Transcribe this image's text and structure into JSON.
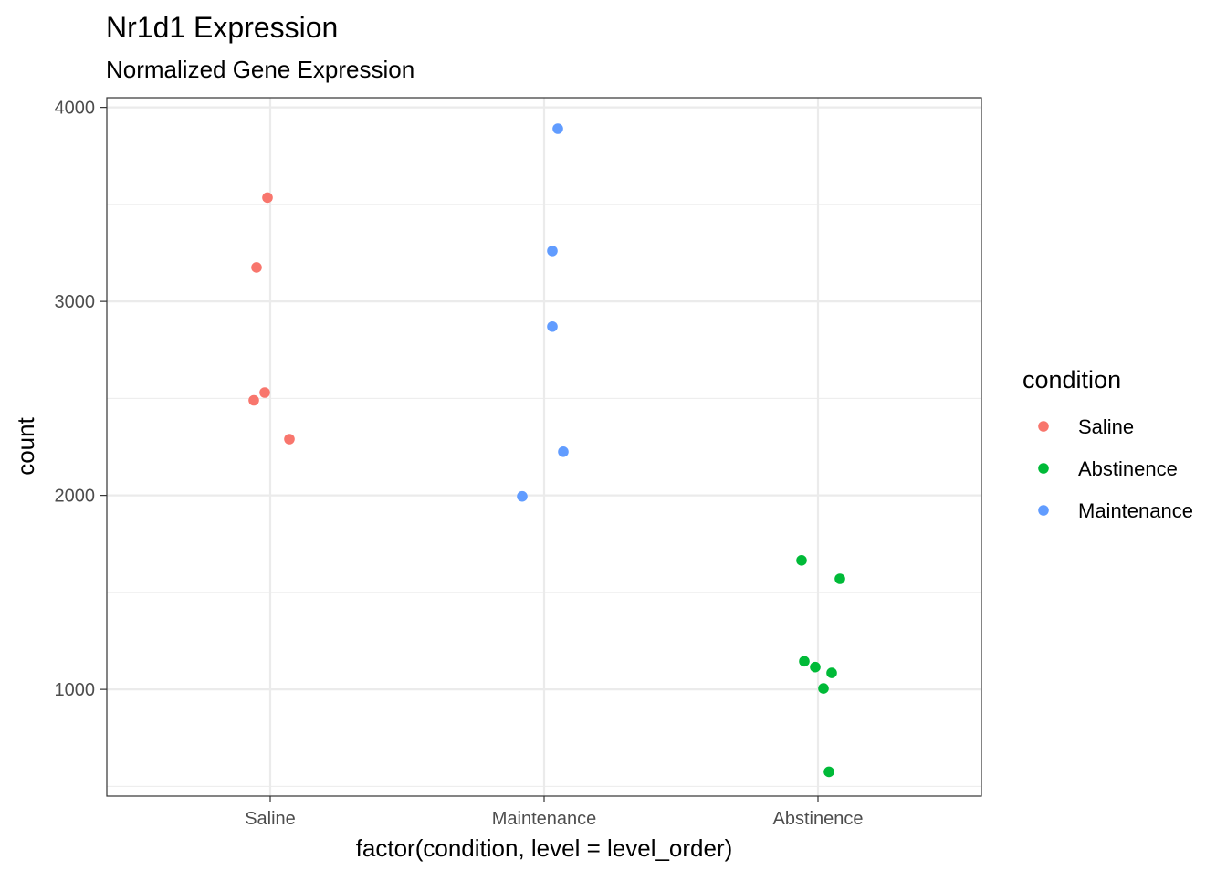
{
  "chart_data": {
    "type": "scatter",
    "title": "Nr1d1 Expression",
    "subtitle": "Normalized Gene Expression",
    "xlabel": "factor(condition, level = level_order)",
    "ylabel": "count",
    "categories": [
      "Saline",
      "Maintenance",
      "Abstinence"
    ],
    "y_ticks": [
      1000,
      2000,
      3000,
      4000
    ],
    "ylim": [
      450,
      4050
    ],
    "grid": true,
    "legend": {
      "title": "condition",
      "position": "right",
      "entries": [
        {
          "label": "Saline",
          "color": "#F8766D"
        },
        {
          "label": "Abstinence",
          "color": "#00BA38"
        },
        {
          "label": "Maintenance",
          "color": "#619CFF"
        }
      ]
    },
    "series": [
      {
        "name": "Saline",
        "color": "#F8766D",
        "category": "Saline",
        "points": [
          {
            "jitter": -0.01,
            "y": 3535
          },
          {
            "jitter": -0.05,
            "y": 3175
          },
          {
            "jitter": -0.02,
            "y": 2530
          },
          {
            "jitter": -0.06,
            "y": 2490
          },
          {
            "jitter": 0.07,
            "y": 2290
          }
        ]
      },
      {
        "name": "Maintenance",
        "color": "#619CFF",
        "category": "Maintenance",
        "points": [
          {
            "jitter": 0.05,
            "y": 3890
          },
          {
            "jitter": 0.03,
            "y": 3260
          },
          {
            "jitter": 0.03,
            "y": 2870
          },
          {
            "jitter": 0.07,
            "y": 2225
          },
          {
            "jitter": -0.08,
            "y": 1995
          }
        ]
      },
      {
        "name": "Abstinence",
        "color": "#00BA38",
        "category": "Abstinence",
        "points": [
          {
            "jitter": -0.06,
            "y": 1665
          },
          {
            "jitter": 0.08,
            "y": 1570
          },
          {
            "jitter": -0.05,
            "y": 1145
          },
          {
            "jitter": -0.01,
            "y": 1115
          },
          {
            "jitter": 0.05,
            "y": 1085
          },
          {
            "jitter": 0.02,
            "y": 1005
          },
          {
            "jitter": 0.04,
            "y": 575
          }
        ]
      }
    ]
  }
}
